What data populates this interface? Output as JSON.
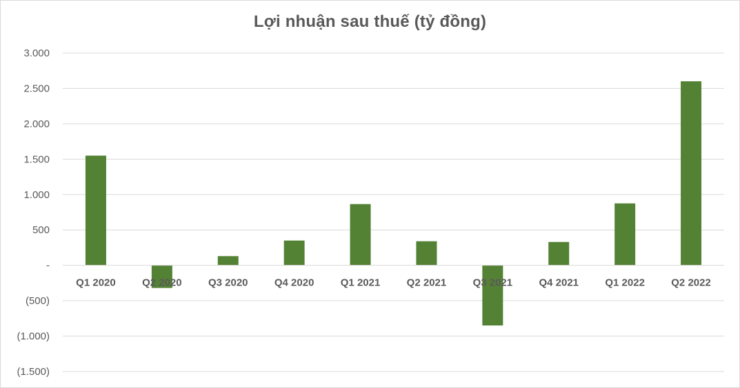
{
  "chart_data": {
    "type": "bar",
    "title": "Lợi nhuận sau thuế (tỷ đồng)",
    "xlabel": "",
    "ylabel": "",
    "categories": [
      "Q1 2020",
      "Q2 2020",
      "Q3 2020",
      "Q4 2020",
      "Q1 2021",
      "Q2 2021",
      "Q3 2021",
      "Q4 2021",
      "Q1 2022",
      "Q2 2022"
    ],
    "values": [
      1550,
      -320,
      130,
      350,
      865,
      340,
      -850,
      330,
      875,
      2600
    ],
    "ylim": [
      -1500,
      3000
    ],
    "yticks": [
      3000,
      2500,
      2000,
      1500,
      1000,
      500,
      0,
      -500,
      -1000,
      -1500
    ],
    "ytick_labels": [
      "3.000",
      "2.500",
      "2.000",
      "1.500",
      "1.000",
      "500",
      "-",
      "(500)",
      "(1.000)",
      "(1.500)"
    ],
    "grid": true,
    "legend": "none",
    "bar_color": "#548235",
    "grid_color": "#d9d9d9",
    "text_color": "#595959"
  }
}
